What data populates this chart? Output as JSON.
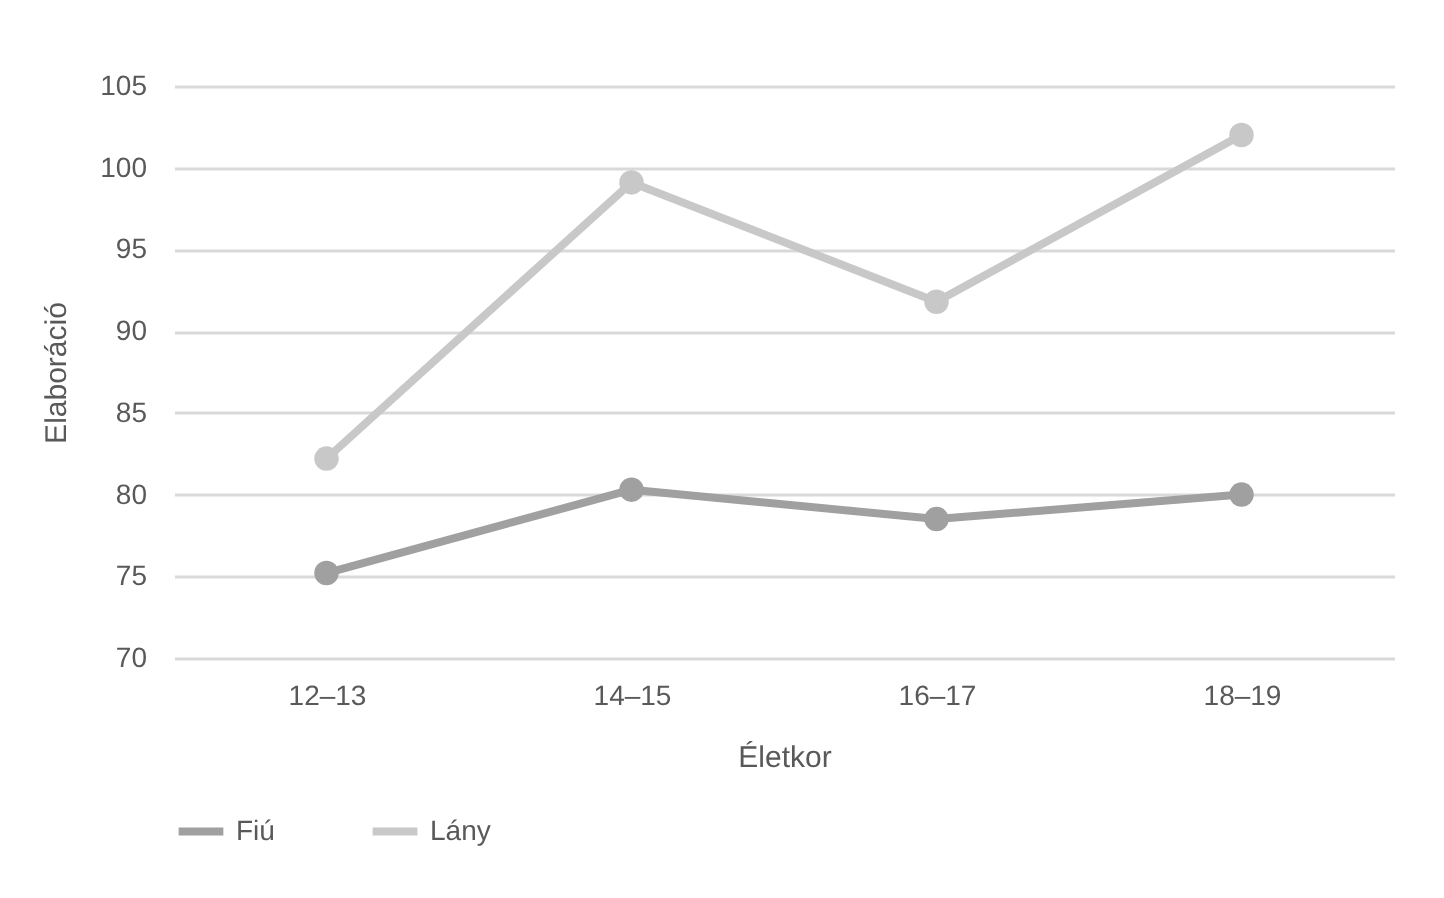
{
  "chart_data": {
    "type": "line",
    "xlabel": "Életkor",
    "ylabel": "Elaboráció",
    "categories": [
      "12–13",
      "14–15",
      "16–17",
      "18–19"
    ],
    "series": [
      {
        "name": "Fiú",
        "color": "#a0a0a0",
        "values": [
          75.2,
          80.3,
          78.5,
          80.0
        ]
      },
      {
        "name": "Lány",
        "color": "#c8c8c8",
        "values": [
          82.2,
          99.1,
          91.8,
          102.0
        ]
      }
    ],
    "ylim": [
      70,
      105
    ],
    "yticks": [
      70,
      75,
      80,
      85,
      90,
      95,
      100,
      105
    ],
    "grid": "y",
    "legend": "bottom",
    "marker": "circle",
    "line_style": "solid"
  }
}
